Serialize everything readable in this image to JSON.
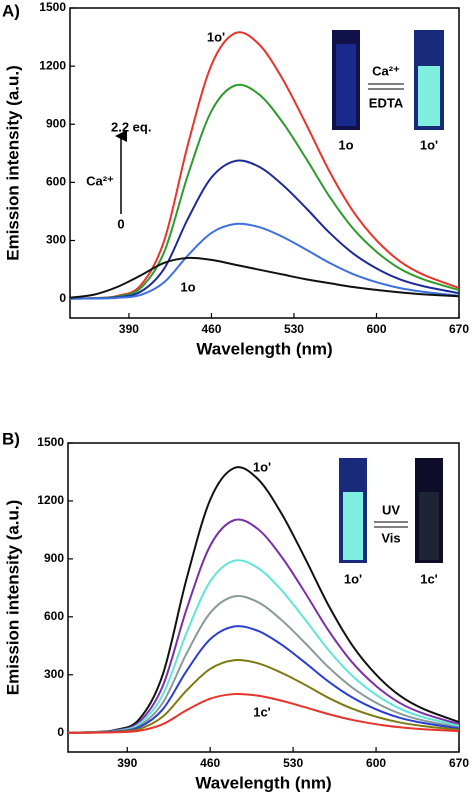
{
  "chart_data": [
    {
      "type": "line",
      "panel_label": "A)",
      "xlabel": "Wavelength (nm)",
      "ylabel": "Emission intensity (a.u.)",
      "x": [
        340,
        360,
        380,
        400,
        420,
        440,
        460,
        480,
        500,
        520,
        540,
        560,
        580,
        600,
        620,
        640,
        670
      ],
      "xlim": [
        340,
        670
      ],
      "ylim": [
        -100,
        1500
      ],
      "xticks": [
        390,
        460,
        530,
        600,
        670
      ],
      "yticks": [
        0,
        300,
        600,
        900,
        1200,
        1500
      ],
      "series": [
        {
          "color": "#e8342a",
          "values": [
            0,
            3,
            14,
            69,
            301,
            795,
            1206,
            1370,
            1315,
            1137,
            904,
            658,
            452,
            301,
            192,
            123,
            55
          ]
        },
        {
          "color": "#2f9a2f",
          "values": [
            0,
            2,
            11,
            55,
            242,
            638,
            968,
            1100,
            1056,
            913,
            726,
            528,
            363,
            242,
            154,
            99,
            44
          ]
        },
        {
          "color": "#1f2a9a",
          "values": [
            0,
            1,
            7,
            36,
            156,
            412,
            625,
            710,
            682,
            589,
            469,
            341,
            234,
            156,
            99,
            64,
            28
          ]
        },
        {
          "color": "#3c6fe0",
          "values": [
            0,
            1,
            4,
            19,
            85,
            223,
            339,
            385,
            370,
            320,
            254,
            185,
            127,
            85,
            54,
            35,
            15
          ]
        },
        {
          "color": "#111111",
          "values": [
            5,
            20,
            60,
            120,
            185,
            210,
            200,
            175,
            150,
            125,
            100,
            80,
            60,
            45,
            32,
            22,
            12
          ]
        }
      ],
      "annotations": [
        "1o'",
        "1o",
        "2.2 eq.",
        "Ca²⁺",
        "0",
        "1o",
        "1o'",
        "Ca²⁺",
        "EDTA"
      ]
    },
    {
      "type": "line",
      "panel_label": "B)",
      "xlabel": "Wavelength (nm)",
      "ylabel": "Emission intensity (a.u.)",
      "x": [
        340,
        360,
        380,
        400,
        420,
        440,
        460,
        480,
        500,
        520,
        540,
        560,
        580,
        600,
        620,
        640,
        670
      ],
      "xlim": [
        340,
        670
      ],
      "ylim": [
        -100,
        1500
      ],
      "xticks": [
        390,
        460,
        530,
        600,
        670
      ],
      "yticks": [
        0,
        300,
        600,
        900,
        1200,
        1500
      ],
      "series": [
        {
          "color": "#111111",
          "values": [
            0,
            3,
            14,
            69,
            301,
            795,
            1206,
            1370,
            1315,
            1137,
            904,
            658,
            452,
            301,
            192,
            123,
            55
          ]
        },
        {
          "color": "#7b2fa8",
          "values": [
            0,
            2,
            11,
            55,
            242,
            638,
            968,
            1100,
            1056,
            913,
            726,
            528,
            363,
            242,
            154,
            99,
            44
          ]
        },
        {
          "color": "#5fe6d8",
          "values": [
            0,
            2,
            9,
            45,
            196,
            516,
            783,
            890,
            854,
            739,
            587,
            427,
            294,
            196,
            125,
            80,
            36
          ]
        },
        {
          "color": "#8a9a9a",
          "values": [
            0,
            1,
            7,
            35,
            155,
            409,
            620,
            705,
            677,
            585,
            465,
            338,
            233,
            155,
            99,
            63,
            28
          ]
        },
        {
          "color": "#2a3fd0",
          "values": [
            0,
            1,
            6,
            28,
            121,
            319,
            484,
            550,
            528,
            457,
            363,
            264,
            182,
            121,
            77,
            50,
            22
          ]
        },
        {
          "color": "#7d7a12",
          "values": [
            0,
            1,
            4,
            19,
            83,
            218,
            330,
            375,
            360,
            311,
            248,
            180,
            124,
            83,
            53,
            34,
            15
          ]
        },
        {
          "color": "#e8342a",
          "values": [
            0,
            0,
            2,
            10,
            44,
            116,
            176,
            200,
            192,
            166,
            132,
            96,
            66,
            44,
            28,
            18,
            8
          ]
        }
      ],
      "annotations": [
        "1o'",
        "1c'",
        "1o'",
        "1c'",
        "UV",
        "Vis"
      ]
    }
  ]
}
